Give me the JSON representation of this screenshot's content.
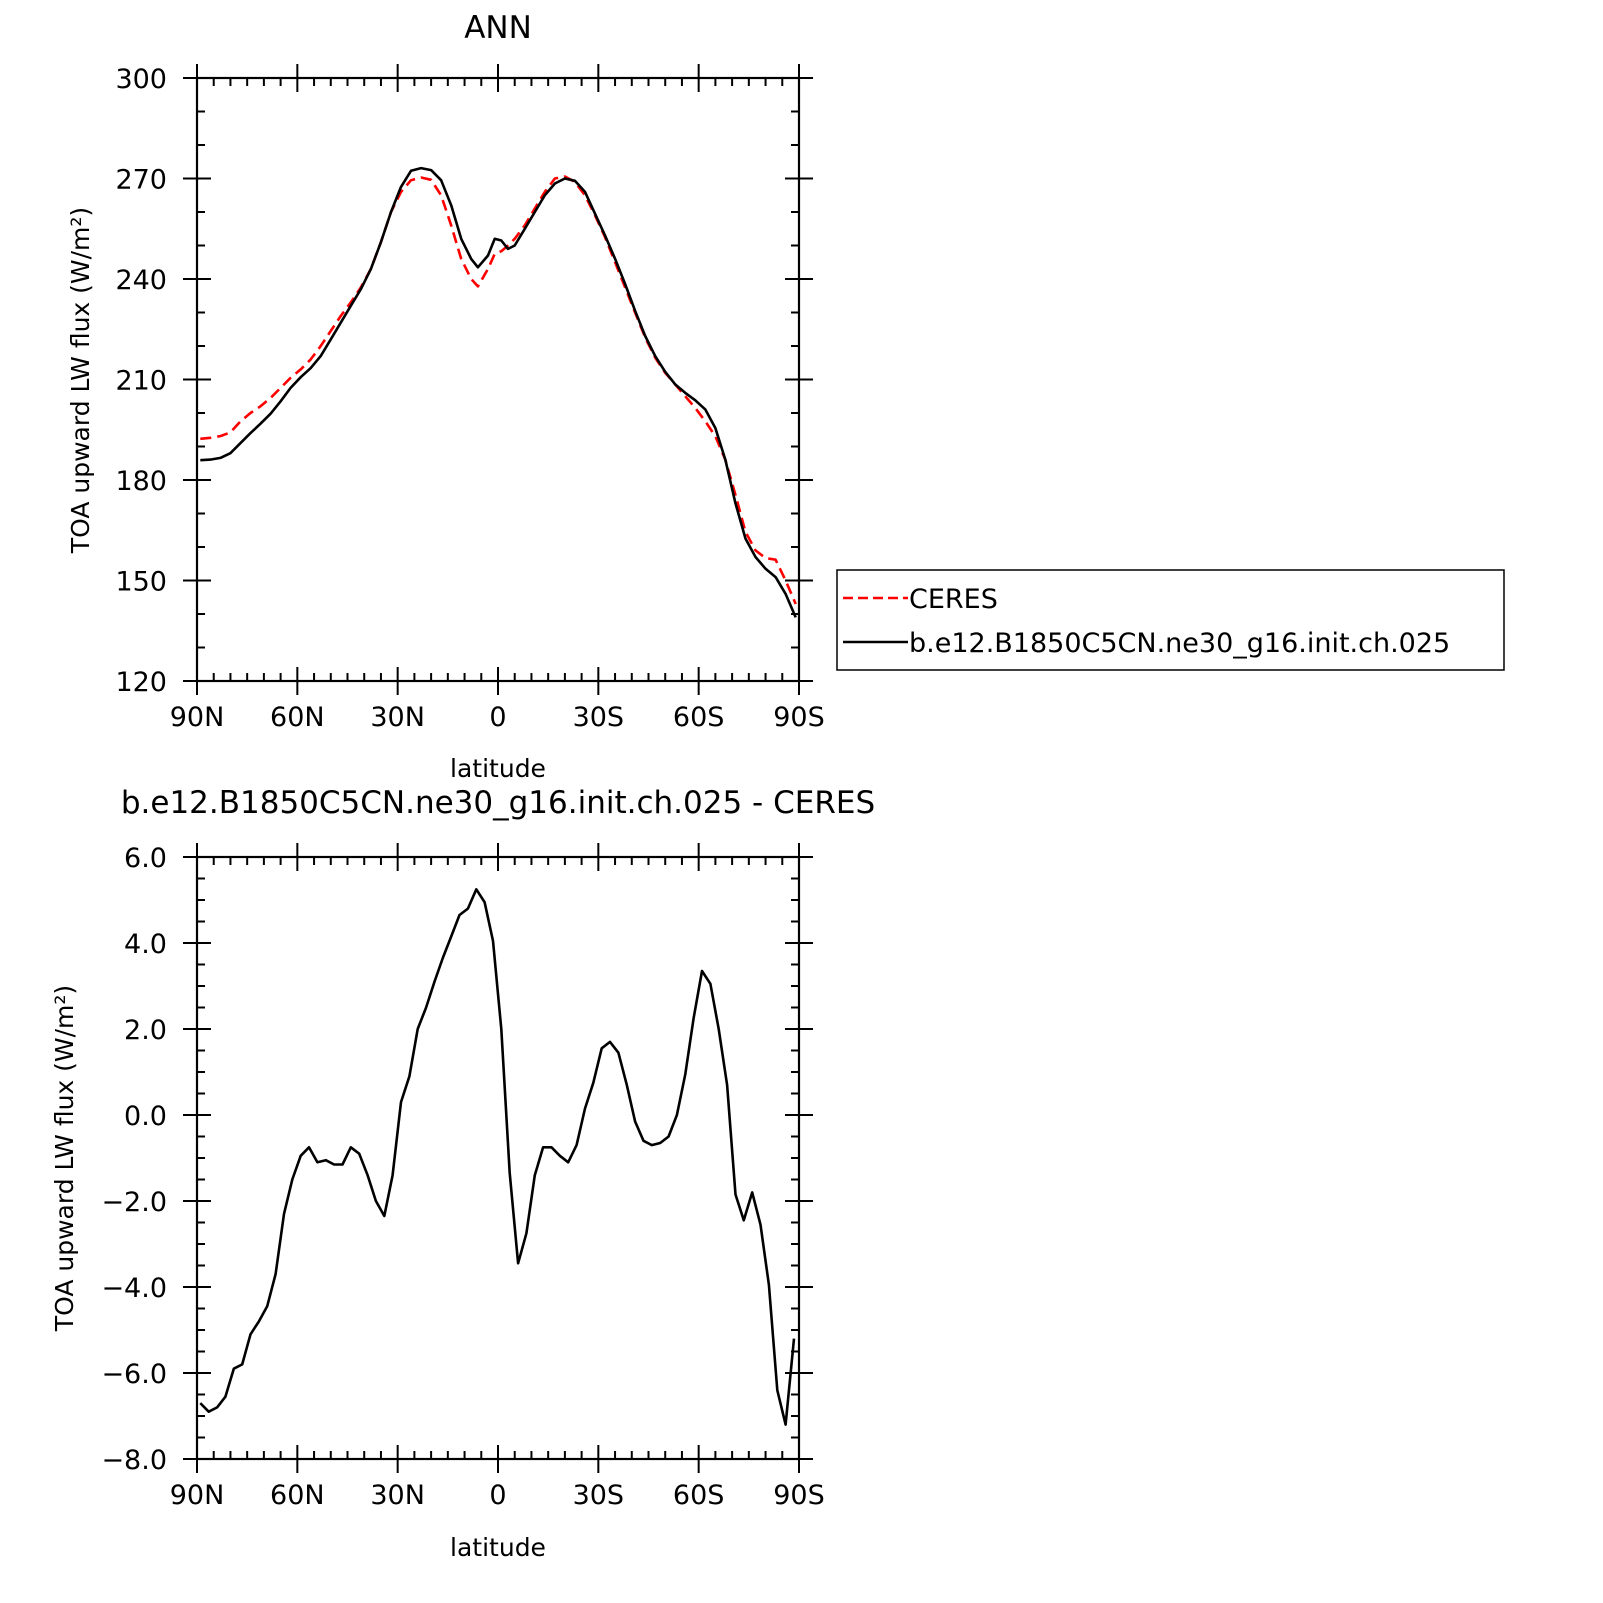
{
  "chart_data": [
    {
      "type": "line",
      "title": "ANN",
      "xlabel": "latitude",
      "ylabel": "TOA upward LW flux (W/m²)",
      "xlim": [
        90,
        -90
      ],
      "ylim": [
        120,
        300
      ],
      "x_tick_values": [
        90,
        60,
        30,
        0,
        -30,
        -60,
        -90
      ],
      "x_tick_labels": [
        "90N",
        "60N",
        "30N",
        "0",
        "30S",
        "60S",
        "90S"
      ],
      "y_ticks": [
        120,
        150,
        180,
        210,
        240,
        270,
        300
      ],
      "grid": false,
      "legend": "right",
      "series": [
        {
          "name": "CERES",
          "color": "#ff0000",
          "dash": "dashed",
          "x": [
            89,
            86,
            83,
            80,
            77,
            74,
            71,
            68,
            65,
            62,
            59,
            56,
            53,
            50,
            47,
            44,
            41,
            38,
            35,
            32,
            29,
            26,
            23,
            20,
            17,
            14,
            11,
            8,
            6,
            3,
            1,
            -1,
            -3,
            -5,
            -8,
            -11,
            -14,
            -17,
            -20,
            -23,
            -26,
            -29,
            -32,
            -35,
            -38,
            -41,
            -44,
            -47,
            -50,
            -53,
            -56,
            -59,
            -62,
            -65,
            -68,
            -71,
            -74,
            -77,
            -80,
            -83,
            -86,
            -89
          ],
          "y": [
            192.3,
            192.6,
            193.1,
            194.2,
            197.5,
            200,
            202,
            204.5,
            207.5,
            210.5,
            213,
            216,
            220,
            224.5,
            229,
            233,
            237.5,
            243,
            251,
            260,
            266,
            269.5,
            270.3,
            269.6,
            265,
            256,
            246,
            240,
            237.8,
            243,
            247.5,
            248.3,
            250,
            252,
            256,
            261,
            266,
            270,
            270.6,
            269,
            265,
            259,
            252.5,
            245,
            237.5,
            230,
            222.5,
            216.5,
            212,
            208.5,
            205,
            201.5,
            197.5,
            193,
            186,
            175.5,
            164.5,
            159,
            156.7,
            156.2,
            150,
            143
          ]
        },
        {
          "name": "b.e12.B1850C5CN.ne30_g16.init.ch.025",
          "color": "#000000",
          "dash": "solid",
          "x": [
            89,
            86,
            83,
            80,
            77,
            74,
            71,
            68,
            65,
            62,
            59,
            56,
            53,
            50,
            47,
            44,
            41,
            38,
            35,
            32,
            29,
            26,
            23,
            20,
            17,
            14,
            11,
            8,
            6,
            3,
            1,
            -1,
            -3,
            -5,
            -8,
            -11,
            -14,
            -17,
            -20,
            -23,
            -26,
            -29,
            -32,
            -35,
            -38,
            -41,
            -44,
            -47,
            -50,
            -53,
            -56,
            -59,
            -62,
            -65,
            -68,
            -71,
            -74,
            -77,
            -80,
            -83,
            -86,
            -89
          ],
          "y": [
            185.9,
            186.1,
            186.6,
            188,
            191,
            194,
            196.8,
            199.8,
            203.5,
            207.5,
            210.7,
            213.4,
            217,
            222,
            227,
            232,
            237,
            243,
            251,
            260,
            267.5,
            272.3,
            273.1,
            272.5,
            269.5,
            262,
            252,
            246,
            243.5,
            247,
            252,
            251.5,
            249,
            250,
            255,
            260,
            265,
            268.5,
            270,
            269.3,
            266,
            259.5,
            253,
            246,
            238.5,
            230.5,
            223,
            217,
            212.3,
            208.5,
            206,
            203.8,
            201,
            195.5,
            186,
            173,
            162.5,
            157,
            153.5,
            151,
            146,
            139
          ]
        }
      ]
    },
    {
      "type": "line",
      "title": "b.e12.B1850C5CN.ne30_g16.init.ch.025 - CERES",
      "xlabel": "latitude",
      "ylabel": "TOA upward LW flux (W/m²)",
      "xlim": [
        90,
        -90
      ],
      "ylim": [
        -8,
        6
      ],
      "x_tick_values": [
        90,
        60,
        30,
        0,
        -30,
        -60,
        -90
      ],
      "x_tick_labels": [
        "90N",
        "60N",
        "30N",
        "0",
        "30S",
        "60S",
        "90S"
      ],
      "y_ticks": [
        -8,
        -6,
        -4,
        -2,
        0,
        2,
        4,
        6
      ],
      "y_tick_labels": [
        "−8.0",
        "−6.0",
        "−4.0",
        "−2.0",
        "0.0",
        "2.0",
        "4.0",
        "6.0"
      ],
      "grid": false,
      "series": [
        {
          "color": "#000000",
          "dash": "solid",
          "x": [
            89,
            86.5,
            84,
            81.5,
            79,
            76.5,
            74,
            71.5,
            69,
            66.5,
            64,
            61.5,
            59,
            56.5,
            54,
            51.5,
            49,
            46.5,
            44,
            41.5,
            39,
            36.5,
            34,
            31.5,
            29,
            26.5,
            24,
            21.5,
            19,
            16.5,
            14,
            11.5,
            9,
            6.5,
            4,
            1.5,
            -1,
            -3.5,
            -6,
            -8.5,
            -11,
            -13.5,
            -16,
            -18.5,
            -21,
            -23.5,
            -26,
            -28.5,
            -31,
            -33.5,
            -36,
            -38.5,
            -41,
            -43.5,
            -46,
            -48.5,
            -51,
            -53.5,
            -56,
            -58.5,
            -61,
            -63.5,
            -66,
            -68.5,
            -71,
            -73.5,
            -76,
            -78.5,
            -81,
            -83.5,
            -86,
            -88.5
          ],
          "y": [
            -6.7,
            -6.9,
            -6.8,
            -6.55,
            -5.9,
            -5.8,
            -5.1,
            -4.8,
            -4.45,
            -3.7,
            -2.3,
            -1.5,
            -0.95,
            -0.75,
            -1.1,
            -1.05,
            -1.15,
            -1.15,
            -0.75,
            -0.9,
            -1.4,
            -2.0,
            -2.35,
            -1.4,
            0.3,
            0.9,
            2.0,
            2.5,
            3.1,
            3.65,
            4.15,
            4.65,
            4.8,
            5.25,
            4.95,
            4.05,
            2.0,
            -1.35,
            -3.45,
            -2.75,
            -1.4,
            -0.75,
            -0.75,
            -0.95,
            -1.1,
            -0.7,
            0.15,
            0.75,
            1.55,
            1.7,
            1.45,
            0.7,
            -0.15,
            -0.6,
            -0.7,
            -0.65,
            -0.5,
            0.0,
            0.95,
            2.25,
            3.35,
            3.05,
            2.0,
            0.7,
            -1.85,
            -2.45,
            -1.8,
            -2.55,
            -3.95,
            -6.4,
            -7.2,
            -5.2
          ]
        }
      ]
    }
  ]
}
